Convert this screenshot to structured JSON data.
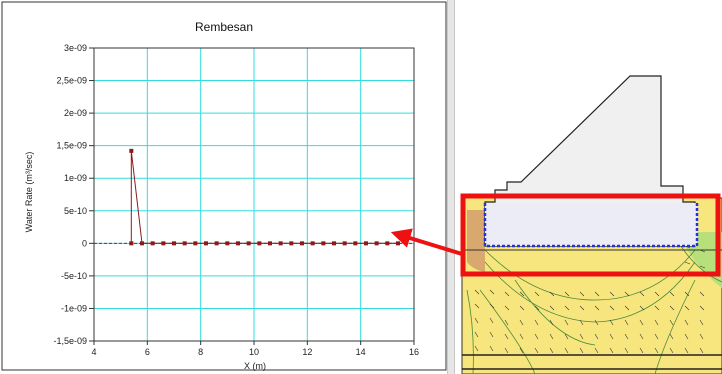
{
  "colors": {
    "grid": "#33dddd",
    "series": "#8b1a1a",
    "highlight": "#ee1111",
    "soil": "#f7e57e",
    "soil_green": "#b7e07a",
    "structure": "#f0f0f0",
    "boundary_blue": "#2233dd"
  },
  "chart_data": {
    "type": "line",
    "title": "Rembesan",
    "xlabel": "X (m)",
    "ylabel": "Water Rate (m³/sec)",
    "xlim": [
      4,
      16
    ],
    "ylim": [
      -1.5e-09,
      3e-09
    ],
    "x_ticks": [
      "4",
      "6",
      "8",
      "10",
      "12",
      "14",
      "16"
    ],
    "y_ticks": [
      "3e-09",
      "2,5e-09",
      "2e-09",
      "1,5e-09",
      "1e-09",
      "5e-10",
      "0",
      "-5e-10",
      "-1e-09",
      "-1,5e-09"
    ],
    "grid": true,
    "series": [
      {
        "x": [
          5.4,
          5.4,
          5.8,
          6.2,
          6.6,
          7.0,
          7.4,
          7.8,
          8.2,
          8.6,
          9.0,
          9.4,
          9.8,
          10.2,
          10.6,
          11.0,
          11.4,
          11.8,
          12.2,
          12.6,
          13.0,
          13.4,
          13.8,
          14.2,
          14.6,
          15.0,
          15.4
        ],
        "y": [
          0,
          1.42e-09,
          0,
          0,
          0,
          0,
          0,
          0,
          0,
          0,
          0,
          0,
          0,
          0,
          0,
          0,
          0,
          0,
          0,
          0,
          0,
          0,
          0,
          0,
          0,
          0,
          0
        ]
      }
    ]
  }
}
